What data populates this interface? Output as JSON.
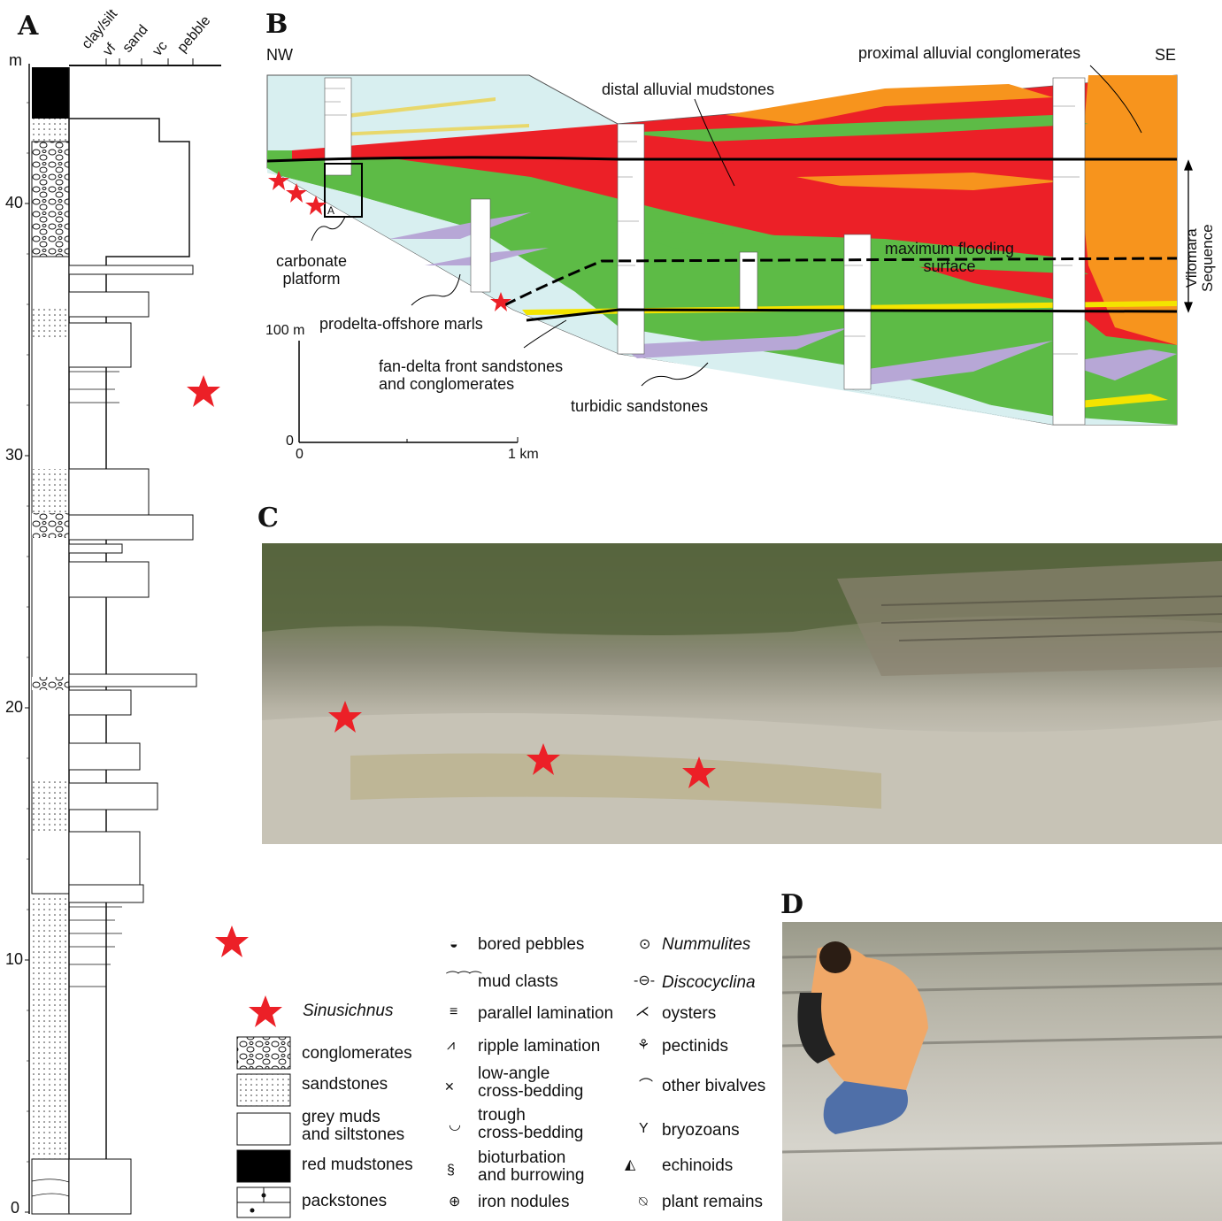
{
  "panels": {
    "a": "A",
    "b": "B",
    "c": "C",
    "d": "D"
  },
  "column_a": {
    "unit": "m",
    "grain_scale": [
      "clay/silt",
      "vf",
      "sand",
      "vc",
      "pebble"
    ],
    "depth_ticks": [
      "0",
      "10",
      "20",
      "30",
      "40"
    ]
  },
  "cross_section": {
    "nw": "NW",
    "se": "SE",
    "labels": {
      "proximal": "proximal alluvial conglomerates",
      "distal": "distal alluvial mudstones",
      "carbonate": "carbonate\nplatform",
      "prodelta": "prodelta-offshore marls",
      "fandelta": "fan-delta front sandstones\nand conglomerates",
      "turbidic": "turbidic sandstones",
      "mfs": "maximum flooding\nsurface",
      "sequence": "Vilomara\nSequence",
      "column_marker": "A"
    },
    "scale": {
      "vertical": "100 m",
      "zero": "0",
      "zero2": "0",
      "horizontal": "1 km"
    }
  },
  "legend": {
    "sinusichnus": "Sinusichnus",
    "lithology": [
      "conglomerates",
      "sandstones",
      "grey muds\nand siltstones",
      "red mudstones",
      "packstones"
    ],
    "structures": [
      "bored pebbles",
      "mud clasts",
      "parallel lamination",
      "ripple lamination",
      "low-angle\ncross-bedding",
      "trough\ncross-bedding",
      "bioturbation\nand burrowing",
      "iron nodules"
    ],
    "fossils": [
      "Nummulites",
      "Discocyclina",
      "oysters",
      "pectinids",
      "other bivalves",
      "bryozoans",
      "echinoids",
      "plant remains"
    ]
  },
  "colors": {
    "red": "#ec2027",
    "green": "#5dbb46",
    "orange": "#f7941d",
    "pale_blue": "#d8eff0",
    "lilac": "#b7a7d6",
    "yellow": "#f3e400"
  }
}
